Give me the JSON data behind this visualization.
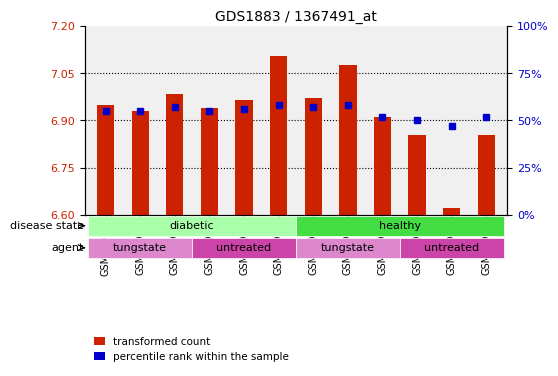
{
  "title": "GDS1883 / 1367491_at",
  "samples": [
    "GSM46977",
    "GSM46978",
    "GSM46979",
    "GSM46980",
    "GSM46981",
    "GSM46982",
    "GSM46985",
    "GSM46986",
    "GSM46990",
    "GSM46987",
    "GSM46988",
    "GSM46989"
  ],
  "transformed_count": [
    6.95,
    6.93,
    6.985,
    6.94,
    6.965,
    7.105,
    6.97,
    7.075,
    6.91,
    6.855,
    6.62,
    6.855
  ],
  "percentile_rank": [
    55,
    55,
    57,
    55,
    56,
    58,
    57,
    58,
    52,
    50,
    47,
    52
  ],
  "ylim_left": [
    6.6,
    7.2
  ],
  "ylim_right": [
    0,
    100
  ],
  "yticks_left": [
    6.6,
    6.75,
    6.9,
    7.05,
    7.2
  ],
  "yticks_right": [
    0,
    25,
    50,
    75,
    100
  ],
  "bar_color": "#cc2200",
  "dot_color": "#0000cc",
  "background_color": "#ffffff",
  "plot_bg_color": "#ffffff",
  "grid_color": "#000000",
  "disease_state": {
    "groups": [
      {
        "label": "diabetic",
        "start": 0,
        "end": 6,
        "color": "#aaffaa"
      },
      {
        "label": "healthy",
        "start": 6,
        "end": 12,
        "color": "#44dd44"
      }
    ]
  },
  "agent": {
    "groups": [
      {
        "label": "tungstate",
        "start": 0,
        "end": 3,
        "color": "#dd88cc"
      },
      {
        "label": "untreated",
        "start": 3,
        "end": 6,
        "color": "#cc44aa"
      },
      {
        "label": "tungstate",
        "start": 6,
        "end": 9,
        "color": "#dd88cc"
      },
      {
        "label": "untreated",
        "start": 9,
        "end": 12,
        "color": "#cc44aa"
      }
    ]
  },
  "legend": [
    {
      "label": "transformed count",
      "color": "#cc2200",
      "marker": "s"
    },
    {
      "label": "percentile rank within the sample",
      "color": "#0000cc",
      "marker": "s"
    }
  ],
  "tick_label_color_left": "#cc2200",
  "tick_label_color_right": "#0000cc",
  "bar_width": 0.5,
  "label_row1": "disease state",
  "label_row2": "agent"
}
